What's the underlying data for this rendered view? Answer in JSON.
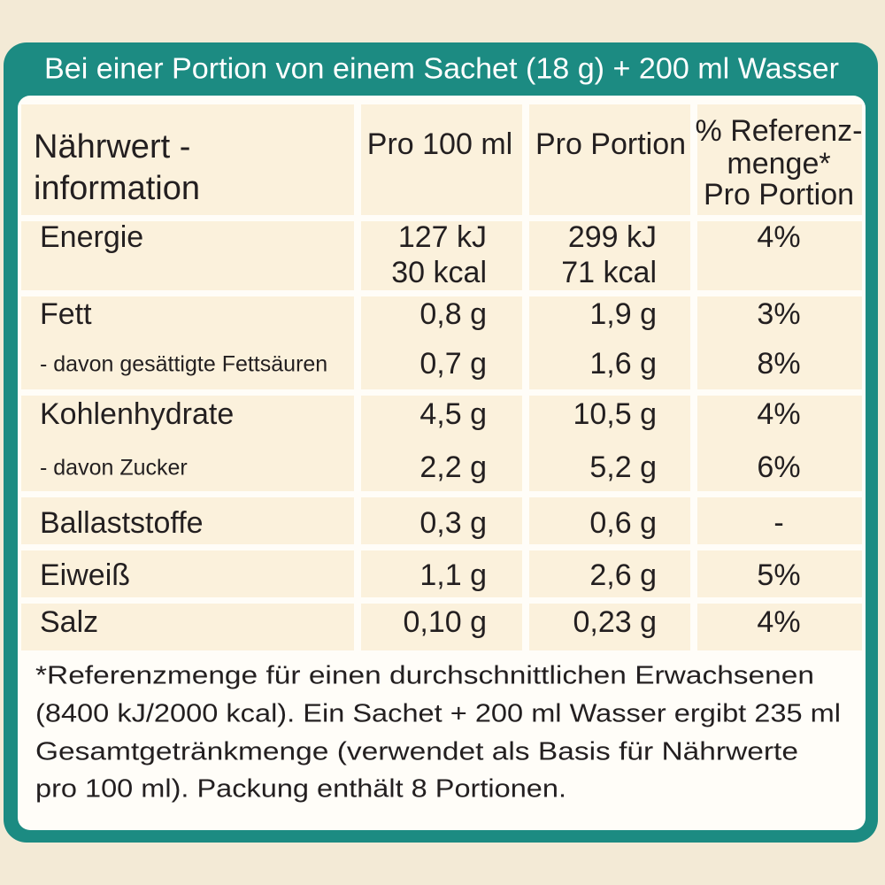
{
  "header": {
    "title": "Bei einer Portion von einem Sachet (18 g) + 200 ml Wasser"
  },
  "table": {
    "columns": [
      [
        "Nährwert -",
        "information"
      ],
      [
        "Pro 100 ml"
      ],
      [
        "Pro Portion"
      ],
      [
        "% Referenz-",
        "menge*",
        "Pro Portion"
      ]
    ],
    "groups": [
      [
        [
          "Energie",
          [
            "127 kJ",
            "30 kcal"
          ],
          [
            "299 kJ",
            "71 kcal"
          ],
          "4%"
        ]
      ],
      [
        [
          "Fett",
          "0,8 g",
          "1,9 g",
          "3%"
        ],
        [
          "- davon gesättigte Fettsäuren",
          "0,7 g",
          "1,6 g",
          "8%"
        ]
      ],
      [
        [
          "Kohlenhydrate",
          "4,5 g",
          "10,5 g",
          "4%"
        ],
        [
          "- davon Zucker",
          "2,2 g",
          "5,2 g",
          "6%"
        ]
      ],
      [
        [
          "Ballaststoffe",
          "0,3 g",
          "0,6 g",
          "-"
        ]
      ],
      [
        [
          "Eiweiß",
          "1,1 g",
          "2,6 g",
          "5%"
        ]
      ],
      [
        [
          "Salz",
          "0,10 g",
          "0,23 g",
          "4%"
        ]
      ]
    ]
  },
  "footnote": [
    "*Referenzmenge für einen durchschnittlichen Erwachsenen",
    "(8400 kJ/2000 kcal). Ein Sachet + 200 ml Wasser ergibt 235 ml",
    "Gesamtgetränkmenge (verwendet als Basis für Nährwerte",
    "pro 100 ml). Packung enthält 8 Portionen."
  ]
}
